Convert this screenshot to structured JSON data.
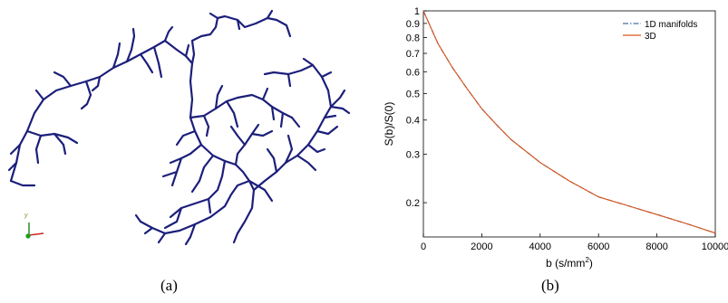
{
  "panels": {
    "a": {
      "caption": "(a)",
      "axis_triad_label": "y"
    },
    "b": {
      "caption": "(b)"
    }
  },
  "colors": {
    "neuron": "#1c1f7a",
    "series_1d": "#4a6fa5",
    "series_3d": "#d95319"
  },
  "chart_data": {
    "type": "line",
    "title": "",
    "xlabel": "b (s/mm",
    "xlabel_superscript": "2",
    "xlabel_suffix": ")",
    "ylabel": "S(b)/S(0)",
    "xlim": [
      0,
      10000
    ],
    "ylim": [
      0.15,
      1.0
    ],
    "yscale": "log",
    "x_ticks": [
      0,
      2000,
      4000,
      6000,
      8000,
      10000
    ],
    "x_tick_labels": [
      "0",
      "2000",
      "4000",
      "6000",
      "8000",
      "10000"
    ],
    "y_ticks": [
      0.2,
      0.3,
      0.4,
      0.5,
      0.6,
      0.7,
      0.8,
      0.9,
      1.0
    ],
    "y_tick_labels": [
      "0.2",
      "0.3",
      "0.4",
      "0.5",
      "0.6",
      "0.7",
      "0.8",
      "0.9",
      "1"
    ],
    "grid": false,
    "legend_position": "top-right",
    "series": [
      {
        "name": "1D manifolds",
        "style": "dash-dot",
        "x": [
          0,
          500,
          1000,
          1500,
          2000,
          2500,
          3000,
          4000,
          5000,
          6000,
          7000,
          8000,
          9000,
          10000
        ],
        "values": [
          1.0,
          0.76,
          0.62,
          0.52,
          0.44,
          0.385,
          0.34,
          0.28,
          0.24,
          0.21,
          0.195,
          0.181,
          0.168,
          0.155
        ]
      },
      {
        "name": "3D",
        "style": "solid",
        "x": [
          0,
          500,
          1000,
          1500,
          2000,
          2500,
          3000,
          4000,
          5000,
          6000,
          7000,
          8000,
          9000,
          10000
        ],
        "values": [
          1.0,
          0.76,
          0.62,
          0.52,
          0.44,
          0.385,
          0.34,
          0.28,
          0.24,
          0.21,
          0.195,
          0.181,
          0.168,
          0.155
        ]
      }
    ]
  }
}
